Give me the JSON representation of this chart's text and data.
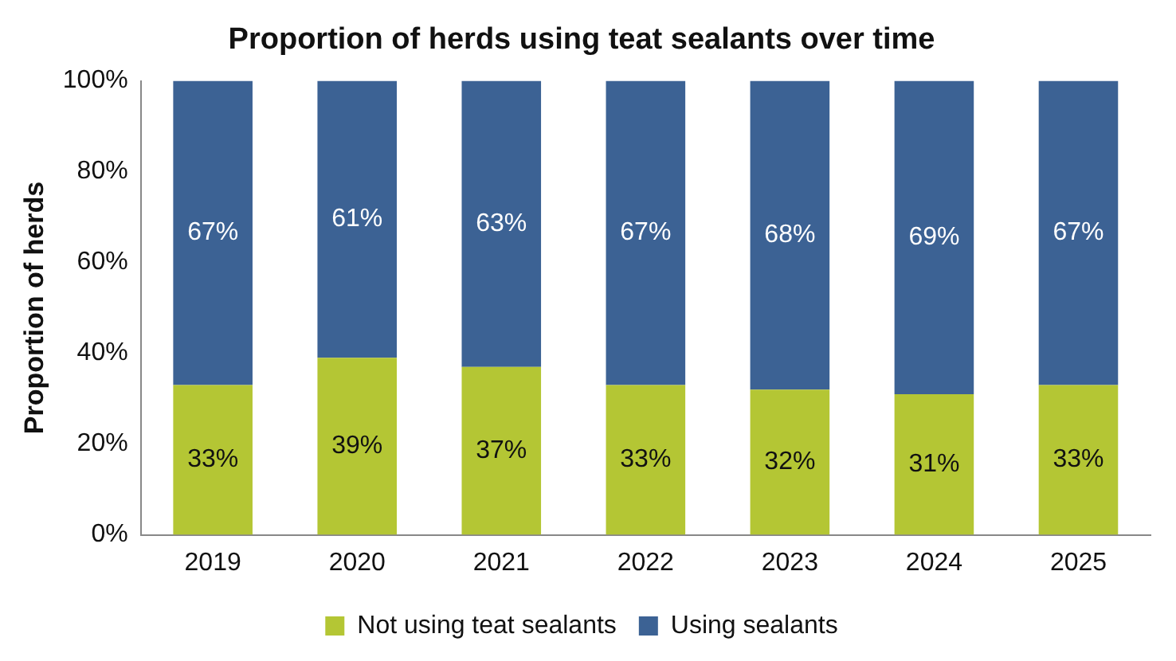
{
  "chart_data": {
    "type": "bar",
    "title": "Proportion of herds using teat sealants over time",
    "ylabel": "Proportion of herds",
    "categories": [
      "2019",
      "2020",
      "2021",
      "2022",
      "2023",
      "2024",
      "2025"
    ],
    "stacked": true,
    "legend": "bottom",
    "grid": false,
    "ylim": [
      0,
      100
    ],
    "yticks": [
      {
        "value": 0,
        "label": "0%"
      },
      {
        "value": 20,
        "label": "20%"
      },
      {
        "value": 40,
        "label": "40%"
      },
      {
        "value": 60,
        "label": "60%"
      },
      {
        "value": 80,
        "label": "80%"
      },
      {
        "value": 100,
        "label": "100%"
      }
    ],
    "series": [
      {
        "name": "Not using teat sealants",
        "color": "#b4c634",
        "values": [
          33,
          39,
          37,
          33,
          32,
          31,
          33
        ],
        "value_labels": [
          "33%",
          "39%",
          "37%",
          "33%",
          "32%",
          "31%",
          "33%"
        ]
      },
      {
        "name": "Using sealants",
        "color": "#3c6294",
        "values": [
          67,
          61,
          63,
          67,
          68,
          69,
          67
        ],
        "value_labels": [
          "67%",
          "61%",
          "63%",
          "67%",
          "68%",
          "69%",
          "67%"
        ]
      }
    ]
  }
}
